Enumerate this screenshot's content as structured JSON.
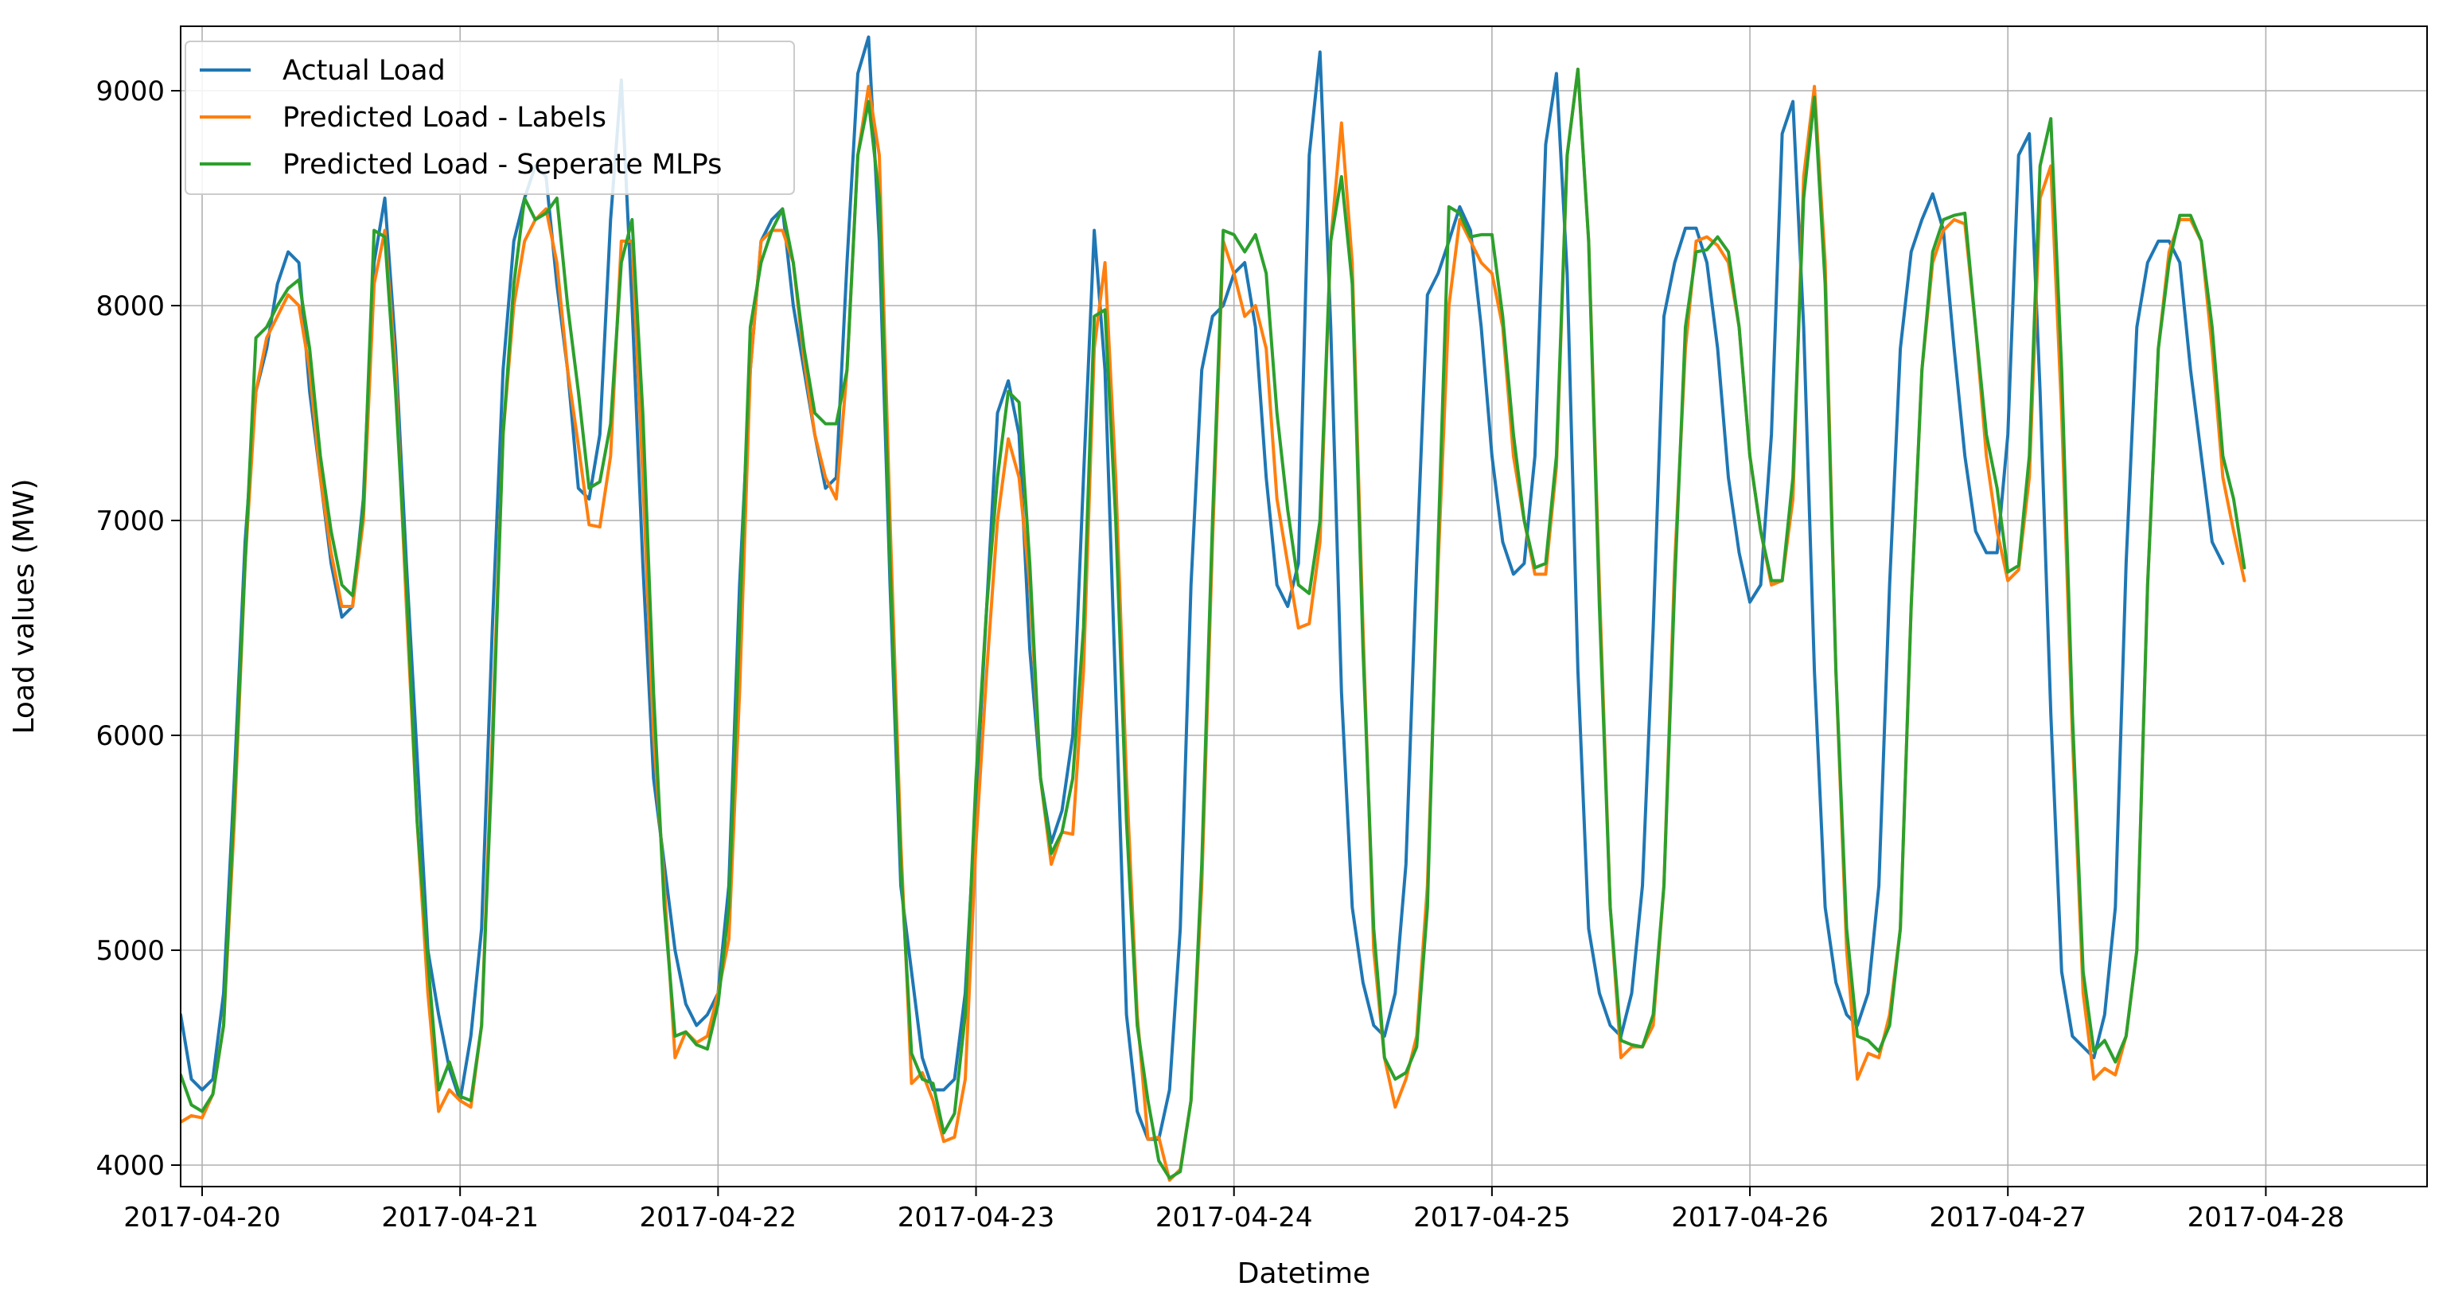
{
  "chart_data": {
    "type": "line",
    "xlabel": "Datetime",
    "ylabel": "Load values (MW)",
    "title": "",
    "xlim": [
      "2017-04-19 22:00",
      "2017-04-28 15:00"
    ],
    "ylim": [
      3900,
      9300
    ],
    "grid": true,
    "legend_position": "top-left",
    "x_ticks": [
      "2017-04-20",
      "2017-04-21",
      "2017-04-22",
      "2017-04-23",
      "2017-04-24",
      "2017-04-25",
      "2017-04-26",
      "2017-04-27",
      "2017-04-28"
    ],
    "y_ticks": [
      4000,
      5000,
      6000,
      7000,
      8000,
      9000
    ],
    "x_interval_hours": 1,
    "series": [
      {
        "name": "Actual Load",
        "color": "#1f77b4",
        "start": "2017-04-19 22:00",
        "values": [
          4700,
          4400,
          4350,
          4400,
          4800,
          5800,
          6900,
          7600,
          7800,
          8100,
          8250,
          8200,
          7600,
          7200,
          6800,
          6550,
          6600,
          7100,
          8200,
          8500,
          7800,
          6800,
          5900,
          5000,
          4700,
          4450,
          4300,
          4600,
          5100,
          6500,
          7700,
          8300,
          8500,
          8650,
          8600,
          8100,
          7700,
          7150,
          7100,
          7400,
          8400,
          9050,
          8000,
          6800,
          5800,
          5400,
          5000,
          4750,
          4650,
          4700,
          4800,
          5300,
          6700,
          7700,
          8300,
          8400,
          8450,
          8000,
          7700,
          7400,
          7150,
          7200,
          8200,
          9080,
          9250,
          8300,
          6700,
          5300,
          4900,
          4500,
          4350,
          4350,
          4400,
          4800,
          5700,
          6600,
          7500,
          7650,
          7400,
          6400,
          5800,
          5500,
          5650,
          6000,
          7200,
          8350,
          7700,
          6200,
          4700,
          4250,
          4120,
          4120,
          4350,
          5100,
          6700,
          7700,
          7950,
          8000,
          8150,
          8200,
          7900,
          7200,
          6700,
          6600,
          6800,
          8700,
          9180,
          7900,
          6200,
          5200,
          4850,
          4650,
          4600,
          4800,
          5400,
          6800,
          8050,
          8150,
          8300,
          8460,
          8350,
          7900,
          7300,
          6900,
          6750,
          6800,
          7300,
          8750,
          9080,
          8150,
          6300,
          5100,
          4800,
          4650,
          4600,
          4800,
          5300,
          6500,
          7950,
          8200,
          8360,
          8360,
          8200,
          7800,
          7200,
          6850,
          6620,
          6700,
          7400,
          8800,
          8950,
          7900,
          6300,
          5200,
          4850,
          4700,
          4650,
          4800,
          5300,
          6700,
          7800,
          8250,
          8400,
          8520,
          8350,
          7800,
          7300,
          6950,
          6850,
          6850,
          7400,
          8700,
          8800,
          7600,
          6100,
          4900,
          4600,
          4550,
          4500,
          4700,
          5200,
          6800,
          7900,
          8200,
          8300,
          8300,
          8200,
          7700,
          7300,
          6900,
          6800
        ]
      },
      {
        "name": "Predicted Load - Labels",
        "color": "#ff7f0e",
        "start": "2017-04-19 22:00",
        "values": [
          4200,
          4230,
          4220,
          4330,
          4650,
          5600,
          6800,
          7600,
          7850,
          7950,
          8050,
          8000,
          7700,
          7200,
          6850,
          6600,
          6600,
          7000,
          8100,
          8350,
          7700,
          6600,
          5600,
          4800,
          4250,
          4350,
          4300,
          4270,
          4650,
          6000,
          7400,
          8000,
          8300,
          8400,
          8450,
          8200,
          7700,
          7350,
          6980,
          6970,
          7300,
          8300,
          8300,
          7200,
          6000,
          5300,
          4500,
          4620,
          4570,
          4600,
          4800,
          5050,
          6200,
          7700,
          8300,
          8350,
          8350,
          8200,
          7750,
          7400,
          7200,
          7100,
          7700,
          8700,
          9020,
          8700,
          7000,
          5500,
          4380,
          4430,
          4300,
          4110,
          4130,
          4400,
          5500,
          6300,
          7000,
          7380,
          7200,
          6700,
          5800,
          5400,
          5550,
          5540,
          6300,
          7800,
          8200,
          7200,
          5800,
          4700,
          4120,
          4130,
          3930,
          3980,
          4300,
          5300,
          6900,
          8300,
          8150,
          7950,
          8000,
          7800,
          7100,
          6800,
          6500,
          6520,
          6900,
          8300,
          8850,
          8200,
          6500,
          5000,
          4500,
          4270,
          4400,
          4600,
          5300,
          6800,
          8000,
          8400,
          8300,
          8200,
          8150,
          7900,
          7300,
          7000,
          6750,
          6750,
          7250,
          8700,
          9100,
          8300,
          6700,
          5200,
          4500,
          4550,
          4550,
          4650,
          5300,
          6800,
          7800,
          8300,
          8320,
          8280,
          8200,
          7900,
          7300,
          6950,
          6700,
          6720,
          7100,
          8600,
          9020,
          8200,
          6300,
          5000,
          4400,
          4520,
          4500,
          4700,
          5100,
          6600,
          7700,
          8200,
          8350,
          8400,
          8380,
          7900,
          7300,
          6950,
          6720,
          6770,
          7200,
          8500,
          8650,
          7500,
          6000,
          4800,
          4400,
          4450,
          4420,
          4600,
          5000,
          6700,
          7800,
          8250,
          8400,
          8400,
          8300,
          7800,
          7200,
          6950,
          6720
        ]
      },
      {
        "name": "Predicted Load - Seperate MLPs",
        "color": "#2ca02c",
        "start": "2017-04-19 22:00",
        "values": [
          4420,
          4280,
          4250,
          4330,
          4650,
          5700,
          6800,
          7850,
          7900,
          8000,
          8080,
          8120,
          7800,
          7300,
          6950,
          6700,
          6650,
          7050,
          8350,
          8320,
          7600,
          6700,
          5600,
          4950,
          4350,
          4480,
          4320,
          4300,
          4650,
          5900,
          7400,
          8100,
          8500,
          8400,
          8430,
          8500,
          8000,
          7600,
          7150,
          7180,
          7450,
          8200,
          8400,
          7500,
          6200,
          5200,
          4600,
          4620,
          4560,
          4540,
          4750,
          5200,
          6500,
          7900,
          8200,
          8350,
          8450,
          8200,
          7800,
          7500,
          7450,
          7450,
          7700,
          8700,
          8950,
          8500,
          6800,
          5400,
          4520,
          4400,
          4380,
          4150,
          4240,
          4700,
          5800,
          6600,
          7200,
          7600,
          7550,
          6800,
          5800,
          5450,
          5550,
          5800,
          6500,
          7950,
          7980,
          7000,
          5600,
          4650,
          4300,
          4020,
          3940,
          3970,
          4300,
          5400,
          7000,
          8350,
          8330,
          8250,
          8330,
          8150,
          7500,
          7050,
          6700,
          6660,
          7000,
          8300,
          8600,
          8100,
          6400,
          5100,
          4500,
          4400,
          4430,
          4550,
          5200,
          6900,
          8460,
          8430,
          8320,
          8330,
          8330,
          7950,
          7400,
          7000,
          6780,
          6800,
          7300,
          8700,
          9100,
          8300,
          6600,
          5200,
          4580,
          4560,
          4550,
          4700,
          5300,
          6700,
          7900,
          8250,
          8260,
          8320,
          8250,
          7900,
          7300,
          6950,
          6720,
          6720,
          7200,
          8500,
          8970,
          8100,
          6300,
          5100,
          4600,
          4580,
          4530,
          4650,
          5100,
          6600,
          7700,
          8250,
          8400,
          8420,
          8430,
          7900,
          7400,
          7150,
          6760,
          6790,
          7300,
          8650,
          8870,
          7700,
          6100,
          4900,
          4530,
          4580,
          4480,
          4600,
          5000,
          6700,
          7800,
          8200,
          8420,
          8420,
          8300,
          7900,
          7300,
          7100,
          6780
        ]
      }
    ]
  }
}
